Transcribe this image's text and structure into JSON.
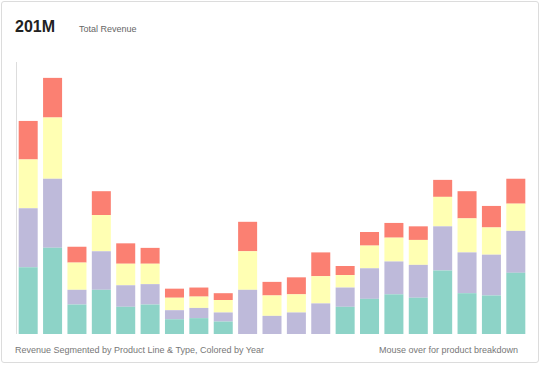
{
  "chart_data": {
    "type": "bar",
    "title": "201M",
    "subtitle": "Total Revenue",
    "annotations": [
      "Revenue Segmented by Product Line & Type, Colored by Year",
      "Mouse over for product breakdown"
    ],
    "categories": [
      null,
      null,
      null,
      null,
      null,
      null,
      null,
      null,
      null,
      null,
      null,
      null,
      null,
      null,
      null,
      null,
      null,
      null,
      null,
      null,
      null
    ],
    "series": [
      {
        "color": "#8dd3c7",
        "values": [
          5.9,
          7.6,
          2.6,
          3.9,
          2.4,
          2.6,
          1.3,
          1.4,
          1.1,
          0,
          0,
          0,
          0,
          2.4,
          3.1,
          3.5,
          3.2,
          5.6,
          3.6,
          3.4,
          5.4
        ]
      },
      {
        "color": "#bebada",
        "values": [
          5.2,
          6.1,
          1.3,
          3.4,
          1.9,
          1.8,
          0.8,
          0.9,
          0.8,
          3.9,
          1.6,
          1.9,
          2.7,
          1.7,
          2.7,
          2.9,
          2.9,
          3.9,
          3.6,
          3.6,
          3.7
        ]
      },
      {
        "color": "#ffffb3",
        "values": [
          4.3,
          5.4,
          2.4,
          3.2,
          1.9,
          1.8,
          1.1,
          1.0,
          1.1,
          3.4,
          1.8,
          1.6,
          2.4,
          1.1,
          2.0,
          2.1,
          2.2,
          2.6,
          3.0,
          2.4,
          2.4
        ]
      },
      {
        "color": "#fb8072",
        "values": [
          3.4,
          3.5,
          1.4,
          2.1,
          1.8,
          1.4,
          0.8,
          0.8,
          0.6,
          2.6,
          1.2,
          1.5,
          2.1,
          0.8,
          1.2,
          1.3,
          1.2,
          1.5,
          2.4,
          1.9,
          2.2
        ]
      }
    ],
    "ylim": [
      0,
      24
    ],
    "stacked": true,
    "grid": false,
    "tick_labels": false
  }
}
